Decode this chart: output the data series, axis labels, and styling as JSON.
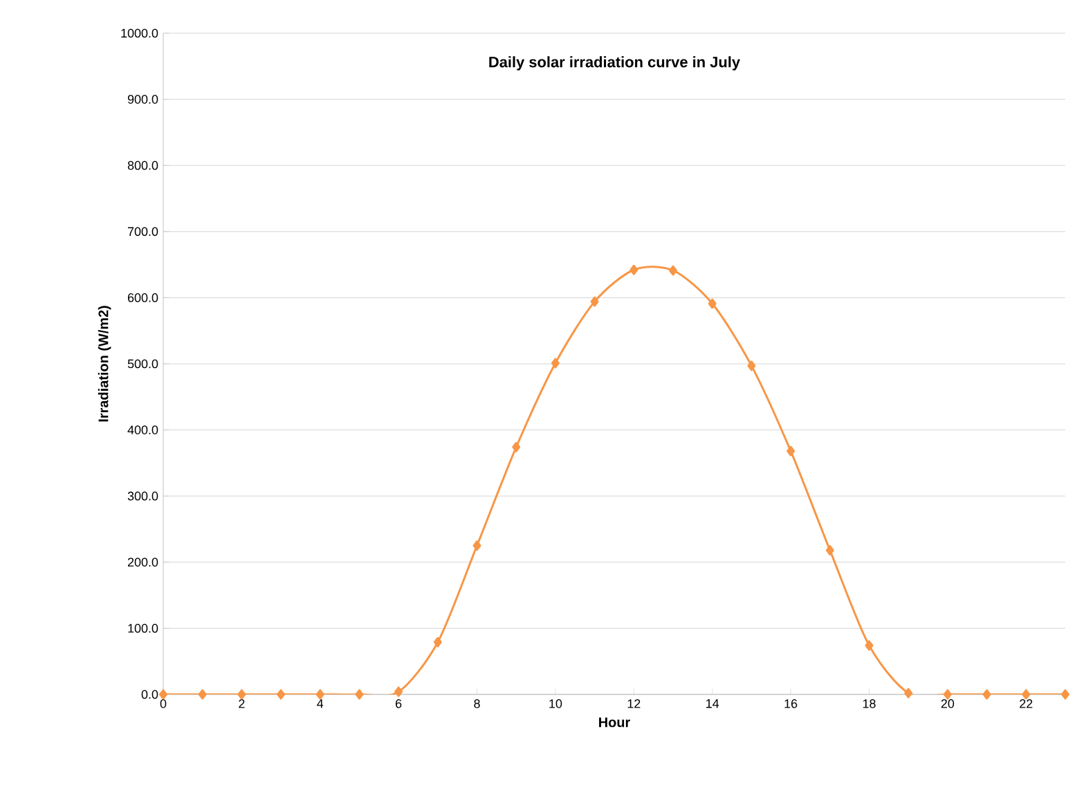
{
  "chart_data": {
    "type": "line",
    "title": "Daily solar irradiation curve in July",
    "xlabel": "Hour",
    "ylabel": "Irradiation  (W/m2)",
    "x": [
      0,
      1,
      2,
      3,
      4,
      5,
      6,
      7,
      8,
      9,
      10,
      11,
      12,
      13,
      14,
      15,
      16,
      17,
      18,
      19,
      20,
      21,
      22,
      23
    ],
    "series": [
      {
        "color": "#f79646",
        "values": [
          0,
          0,
          0,
          0,
          0,
          0,
          4,
          79,
          225,
          374,
          501,
          594,
          642,
          641,
          591,
          497,
          368,
          218,
          74,
          2,
          0,
          0,
          0,
          0
        ]
      }
    ],
    "xlim": [
      0,
      23
    ],
    "xticks": [
      0,
      2,
      4,
      6,
      8,
      10,
      12,
      14,
      16,
      18,
      20,
      22
    ],
    "ylim": [
      0,
      1000
    ],
    "yticks": [
      {
        "value": 0,
        "label": "0.0"
      },
      {
        "value": 100,
        "label": "100.0"
      },
      {
        "value": 200,
        "label": "200.0"
      },
      {
        "value": 300,
        "label": "300.0"
      },
      {
        "value": 400,
        "label": "400.0"
      },
      {
        "value": 500,
        "label": "500.0"
      },
      {
        "value": 600,
        "label": "600.0"
      },
      {
        "value": 700,
        "label": "700.0"
      },
      {
        "value": 800,
        "label": "800.0"
      },
      {
        "value": 900,
        "label": "900.0"
      },
      {
        "value": 1000,
        "label": "1000.0"
      }
    ],
    "grid": "y",
    "marker": "diamond",
    "line_style": "solid"
  }
}
